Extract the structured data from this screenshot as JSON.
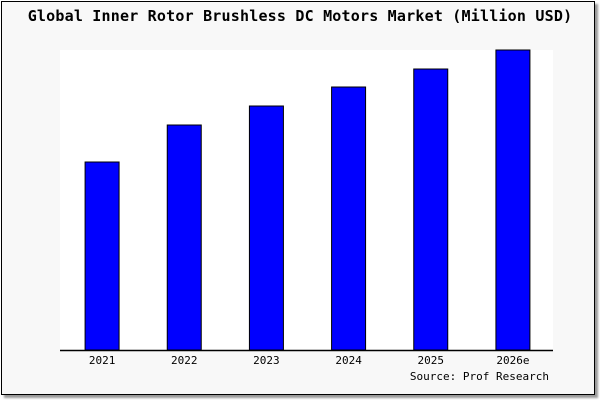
{
  "chart_data": {
    "type": "bar",
    "title": "Global Inner Rotor Brushless DC Motors Market (Million USD)",
    "categories": [
      "2021",
      "2022",
      "2023",
      "2024",
      "2025",
      "2026e"
    ],
    "values": [
      188,
      225,
      244,
      263,
      281,
      300
    ],
    "value_note_unit": "relative (no y-axis printed)",
    "ylim": [
      0,
      300
    ],
    "xlabel": "",
    "ylabel": "",
    "grid": false,
    "bar_color": "#0000ff",
    "source": "Source: Prof Research"
  }
}
